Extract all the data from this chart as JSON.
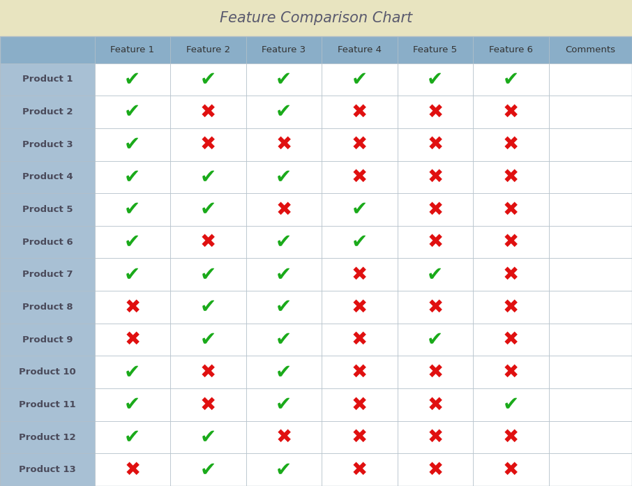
{
  "title": "Feature Comparison Chart",
  "columns": [
    "",
    "Feature 1",
    "Feature 2",
    "Feature 3",
    "Feature 4",
    "Feature 5",
    "Feature 6",
    "Comments"
  ],
  "rows": [
    "Product 1",
    "Product 2",
    "Product 3",
    "Product 4",
    "Product 5",
    "Product 6",
    "Product 7",
    "Product 8",
    "Product 9",
    "Product 10",
    "Product 11",
    "Product 12",
    "Product 13"
  ],
  "data": [
    [
      1,
      1,
      1,
      1,
      1,
      1
    ],
    [
      1,
      0,
      1,
      0,
      0,
      0
    ],
    [
      1,
      0,
      0,
      0,
      0,
      0
    ],
    [
      1,
      1,
      1,
      0,
      0,
      0
    ],
    [
      1,
      1,
      0,
      1,
      0,
      0
    ],
    [
      1,
      0,
      1,
      1,
      0,
      0
    ],
    [
      1,
      1,
      1,
      0,
      1,
      0
    ],
    [
      0,
      1,
      1,
      0,
      0,
      0
    ],
    [
      0,
      1,
      1,
      0,
      1,
      0
    ],
    [
      1,
      0,
      1,
      0,
      0,
      0
    ],
    [
      1,
      0,
      1,
      0,
      0,
      1
    ],
    [
      1,
      1,
      0,
      0,
      0,
      0
    ],
    [
      0,
      1,
      1,
      0,
      0,
      0
    ]
  ],
  "title_bg_color": "#e8e4c0",
  "header_bg_color": "#8aaec8",
  "row_label_bg_color": "#a8c0d4",
  "row_cell_bg": "#ffffff",
  "comments_bg": "#ffffff",
  "grid_color": "#b0bec8",
  "check_color": "#1aaa1a",
  "cross_color": "#e01010",
  "title_font_size": 15,
  "header_font_size": 9.5,
  "cell_font_size": 9.5,
  "symbol_font_size": 20,
  "title_color": "#5a5a6e",
  "header_text_color": "#333333",
  "row_label_text_color": "#4a4a5a"
}
